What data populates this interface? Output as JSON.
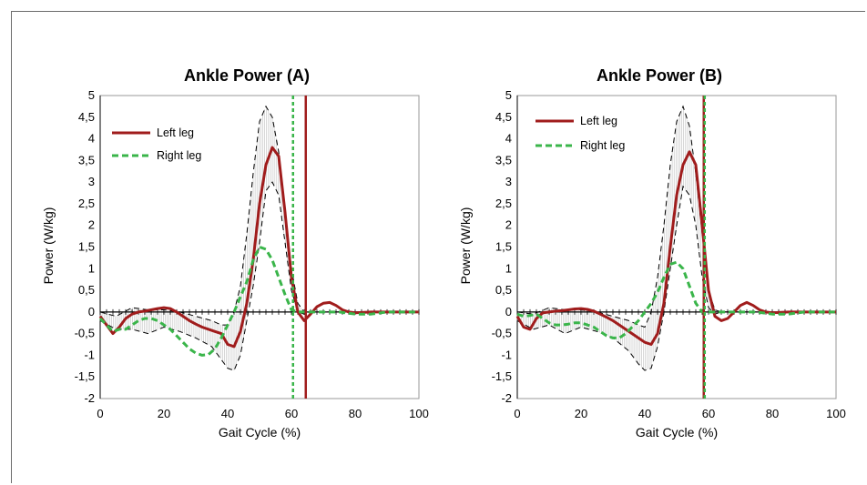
{
  "chart_data": [
    {
      "type": "line",
      "title": "Ankle Power (A)",
      "xlabel": "Gait Cycle (%)",
      "ylabel": "Power (W/kg)",
      "xlim": [
        0,
        100
      ],
      "ylim": [
        -2,
        5
      ],
      "xticks": [
        "0",
        "20",
        "40",
        "60",
        "80",
        "100"
      ],
      "yticks": [
        "-2",
        "-1,5",
        "-1",
        "-0,5",
        "0",
        "0,5",
        "1",
        "1,5",
        "2",
        "2,5",
        "3",
        "3,5",
        "4",
        "4,5",
        "5"
      ],
      "legend_position": "top-left",
      "series": [
        {
          "name": "Left leg",
          "color": "#a01c1c",
          "style": "solid",
          "x": [
            0,
            2,
            4,
            6,
            8,
            10,
            12,
            14,
            16,
            18,
            20,
            22,
            24,
            26,
            28,
            30,
            32,
            34,
            36,
            38,
            40,
            42,
            44,
            46,
            48,
            50,
            52,
            54,
            56,
            58,
            60,
            62,
            64,
            66,
            68,
            70,
            72,
            74,
            76,
            78,
            80,
            85,
            90,
            95,
            100
          ],
          "y": [
            -0.1,
            -0.3,
            -0.5,
            -0.35,
            -0.15,
            -0.05,
            0.0,
            0.02,
            0.05,
            0.08,
            0.1,
            0.08,
            0.0,
            -0.1,
            -0.2,
            -0.28,
            -0.35,
            -0.4,
            -0.45,
            -0.5,
            -0.75,
            -0.8,
            -0.45,
            0.2,
            1.2,
            2.5,
            3.4,
            3.8,
            3.6,
            2.3,
            0.8,
            0.0,
            -0.2,
            -0.05,
            0.12,
            0.2,
            0.22,
            0.15,
            0.05,
            0.0,
            -0.02,
            0.0,
            0.0,
            0.0,
            0.0
          ]
        },
        {
          "name": "Right leg",
          "color": "#3ab54a",
          "style": "dashed",
          "x": [
            0,
            2,
            4,
            6,
            8,
            10,
            12,
            14,
            16,
            18,
            20,
            22,
            24,
            26,
            28,
            30,
            32,
            34,
            36,
            38,
            40,
            42,
            44,
            46,
            48,
            50,
            52,
            54,
            56,
            58,
            60,
            62,
            64,
            66,
            70,
            75,
            80,
            85,
            90,
            95,
            100
          ],
          "y": [
            -0.15,
            -0.3,
            -0.45,
            -0.4,
            -0.4,
            -0.3,
            -0.2,
            -0.15,
            -0.15,
            -0.2,
            -0.3,
            -0.4,
            -0.55,
            -0.7,
            -0.85,
            -0.95,
            -1.0,
            -0.98,
            -0.85,
            -0.6,
            -0.3,
            0.0,
            0.35,
            0.7,
            1.2,
            1.5,
            1.45,
            1.2,
            0.8,
            0.4,
            0.05,
            0.0,
            0.0,
            0.0,
            0.0,
            0.0,
            -0.05,
            -0.05,
            0.0,
            0.0,
            0.0
          ]
        }
      ],
      "band_upper": {
        "x": [
          0,
          5,
          10,
          15,
          20,
          25,
          30,
          35,
          38,
          40,
          42,
          44,
          46,
          48,
          50,
          52,
          54,
          56,
          58,
          60,
          62,
          64,
          66,
          70,
          80,
          90,
          100
        ],
        "y": [
          0.0,
          -0.1,
          0.1,
          0.05,
          0.05,
          0.0,
          -0.1,
          -0.2,
          -0.3,
          -0.3,
          0.0,
          0.6,
          1.8,
          3.2,
          4.4,
          4.75,
          4.5,
          3.7,
          2.4,
          1.0,
          0.2,
          0.0,
          0.0,
          0.0,
          0.0,
          0.0,
          0.0
        ]
      },
      "band_lower": {
        "x": [
          0,
          5,
          10,
          15,
          20,
          25,
          30,
          35,
          38,
          40,
          42,
          44,
          46,
          48,
          50,
          52,
          54,
          56,
          58,
          60,
          62,
          64,
          66,
          70,
          80,
          90,
          100
        ],
        "y": [
          -0.2,
          -0.4,
          -0.4,
          -0.5,
          -0.35,
          -0.45,
          -0.6,
          -0.8,
          -1.1,
          -1.3,
          -1.35,
          -1.0,
          -0.2,
          0.6,
          1.6,
          2.8,
          3.0,
          2.7,
          1.6,
          0.5,
          0.0,
          -0.05,
          0.0,
          0.0,
          0.0,
          0.0,
          0.0
        ]
      },
      "vertical_lines": [
        {
          "x": 64.5,
          "color": "#a01c1c",
          "style": "solid"
        },
        {
          "x": 60.5,
          "color": "#3ab54a",
          "style": "dashed"
        }
      ]
    },
    {
      "type": "line",
      "title": "Ankle Power (B)",
      "xlabel": "Gait Cycle (%)",
      "ylabel": "Power (W/kg)",
      "xlim": [
        0,
        100
      ],
      "ylim": [
        -2,
        5
      ],
      "xticks": [
        "0",
        "20",
        "40",
        "60",
        "80",
        "100"
      ],
      "yticks": [
        "-2",
        "-1,5",
        "-1",
        "-0,5",
        "0",
        "0,5",
        "1",
        "1,5",
        "2",
        "2,5",
        "3",
        "3,5",
        "4",
        "4,5",
        "5"
      ],
      "legend_position": "top-left",
      "series": [
        {
          "name": "Left leg",
          "color": "#a01c1c",
          "style": "solid",
          "x": [
            0,
            2,
            4,
            6,
            8,
            10,
            12,
            14,
            16,
            18,
            20,
            22,
            24,
            26,
            28,
            30,
            32,
            34,
            36,
            38,
            40,
            42,
            44,
            46,
            48,
            50,
            52,
            54,
            56,
            58,
            60,
            62,
            64,
            66,
            68,
            70,
            72,
            74,
            76,
            78,
            80,
            85,
            90,
            95,
            100
          ],
          "y": [
            -0.1,
            -0.35,
            -0.4,
            -0.15,
            -0.02,
            0.0,
            0.02,
            0.03,
            0.05,
            0.07,
            0.08,
            0.06,
            0.02,
            -0.05,
            -0.12,
            -0.2,
            -0.3,
            -0.4,
            -0.5,
            -0.6,
            -0.7,
            -0.75,
            -0.5,
            0.2,
            1.5,
            2.7,
            3.4,
            3.7,
            3.4,
            2.0,
            0.5,
            -0.1,
            -0.2,
            -0.15,
            0.0,
            0.15,
            0.22,
            0.15,
            0.05,
            0.0,
            -0.02,
            0.0,
            0.0,
            0.0,
            0.0
          ]
        },
        {
          "name": "Right leg",
          "color": "#3ab54a",
          "style": "dashed",
          "x": [
            0,
            2,
            4,
            6,
            8,
            10,
            12,
            14,
            16,
            18,
            20,
            22,
            24,
            26,
            28,
            30,
            32,
            34,
            36,
            38,
            40,
            42,
            44,
            46,
            48,
            50,
            52,
            54,
            56,
            58,
            60,
            62,
            64,
            66,
            70,
            75,
            80,
            85,
            90,
            95,
            100
          ],
          "y": [
            -0.05,
            -0.1,
            -0.08,
            -0.05,
            -0.15,
            -0.25,
            -0.3,
            -0.3,
            -0.28,
            -0.25,
            -0.25,
            -0.3,
            -0.35,
            -0.45,
            -0.55,
            -0.6,
            -0.6,
            -0.5,
            -0.35,
            -0.2,
            0.0,
            0.2,
            0.45,
            0.8,
            1.1,
            1.15,
            1.0,
            0.6,
            0.2,
            0.0,
            0.0,
            0.0,
            0.0,
            0.0,
            0.0,
            0.0,
            -0.05,
            -0.05,
            0.0,
            0.0,
            0.0
          ]
        }
      ],
      "band_upper": {
        "x": [
          0,
          5,
          10,
          15,
          20,
          25,
          30,
          35,
          38,
          40,
          42,
          44,
          46,
          48,
          50,
          52,
          54,
          56,
          58,
          60,
          62,
          64,
          66,
          70,
          80,
          90,
          100
        ],
        "y": [
          0.0,
          -0.05,
          0.1,
          0.05,
          0.05,
          0.0,
          -0.1,
          -0.2,
          -0.3,
          -0.35,
          0.0,
          0.8,
          2.0,
          3.4,
          4.4,
          4.75,
          4.3,
          3.2,
          1.8,
          0.5,
          0.05,
          0.0,
          0.0,
          0.0,
          0.0,
          0.0,
          0.0
        ]
      },
      "band_lower": {
        "x": [
          0,
          5,
          10,
          15,
          20,
          25,
          30,
          35,
          38,
          40,
          42,
          44,
          46,
          48,
          50,
          52,
          54,
          56,
          58,
          60,
          62,
          64,
          66,
          70,
          80,
          90,
          100
        ],
        "y": [
          -0.2,
          -0.4,
          -0.3,
          -0.5,
          -0.35,
          -0.45,
          -0.6,
          -0.9,
          -1.2,
          -1.35,
          -1.3,
          -0.8,
          0.0,
          1.0,
          2.0,
          2.9,
          2.7,
          2.0,
          0.8,
          0.1,
          -0.05,
          0.0,
          0.0,
          0.0,
          0.0,
          0.0,
          0.0
        ]
      },
      "vertical_lines": [
        {
          "x": 58.5,
          "color": "#a01c1c",
          "style": "solid"
        },
        {
          "x": 58.8,
          "color": "#3ab54a",
          "style": "dashed"
        }
      ]
    }
  ]
}
